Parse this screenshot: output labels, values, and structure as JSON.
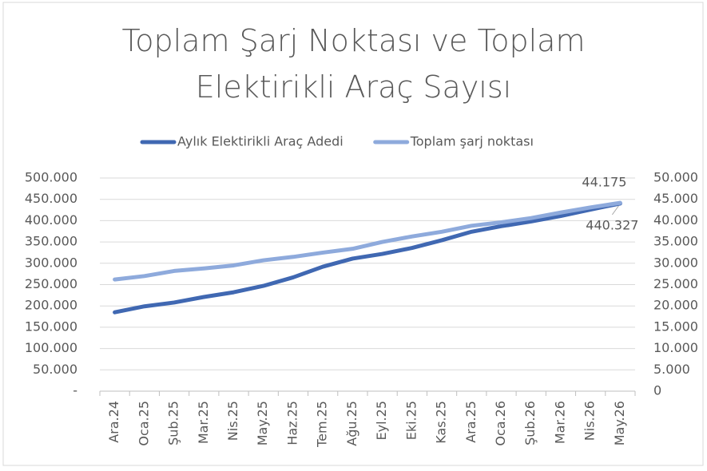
{
  "chart_data": {
    "type": "line",
    "title": "Toplam Şarj Noktası ve Toplam Elektirikli Araç Sayısı",
    "categories": [
      "Ara.24",
      "Oca.25",
      "Şub.25",
      "Mar.25",
      "Nis.25",
      "May.25",
      "Haz.25",
      "Tem.25",
      "Ağu.25",
      "Eyl.25",
      "Eki.25",
      "Kas.25",
      "Ara.25",
      "Oca.26",
      "Şub.26",
      "Mar.26",
      "Nis.26",
      "May.26"
    ],
    "series": [
      {
        "name": "Aylık Elektirikli Araç Adedi",
        "color": "#4068b2",
        "values": [
          185000,
          199000,
          208000,
          221000,
          232000,
          247000,
          267000,
          292000,
          311000,
          322000,
          336000,
          354000,
          374000,
          387000,
          398000,
          411000,
          426000,
          440327
        ],
        "value_labels": [
          null,
          null,
          null,
          null,
          null,
          null,
          null,
          null,
          null,
          null,
          null,
          null,
          null,
          null,
          null,
          null,
          null,
          "440.327"
        ]
      },
      {
        "name": "Toplam şarj noktası",
        "color": "#8eaadc",
        "axis": "y2",
        "values": [
          26200,
          27000,
          28200,
          28800,
          29500,
          30700,
          31500,
          32500,
          33400,
          35000,
          36300,
          37400,
          38800,
          39600,
          40600,
          41900,
          43100,
          44175
        ],
        "value_labels": [
          null,
          null,
          null,
          null,
          null,
          null,
          null,
          null,
          null,
          null,
          null,
          null,
          null,
          null,
          null,
          null,
          null,
          "44.175"
        ]
      }
    ],
    "ylim": [
      0,
      500000
    ],
    "yticks": [
      {
        "value": 0,
        "label": "-"
      },
      {
        "value": 50000,
        "label": "50.000"
      },
      {
        "value": 100000,
        "label": "100.000"
      },
      {
        "value": 150000,
        "label": "150.000"
      },
      {
        "value": 200000,
        "label": "200.000"
      },
      {
        "value": 250000,
        "label": "250.000"
      },
      {
        "value": 300000,
        "label": "300.000"
      },
      {
        "value": 350000,
        "label": "350.000"
      },
      {
        "value": 400000,
        "label": "400.000"
      },
      {
        "value": 450000,
        "label": "450.000"
      },
      {
        "value": 500000,
        "label": "500.000"
      }
    ],
    "y2lim": [
      0,
      50000
    ],
    "y2ticks": [
      0,
      {
        "value": 5000,
        "label": "5.000"
      },
      {
        "value": 10000,
        "label": "10.000"
      },
      {
        "value": 15000,
        "label": "15.000"
      },
      {
        "value": 20000,
        "label": "20.000"
      },
      {
        "value": 25000,
        "label": "25.000"
      },
      {
        "value": 30000,
        "label": "30.000"
      },
      {
        "value": 35000,
        "label": "35.000"
      },
      {
        "value": 40000,
        "label": "40.000"
      },
      {
        "value": 45000,
        "label": "45.000"
      },
      {
        "value": 50000,
        "label": "50.000"
      }
    ],
    "grid": true,
    "legend": "top"
  }
}
